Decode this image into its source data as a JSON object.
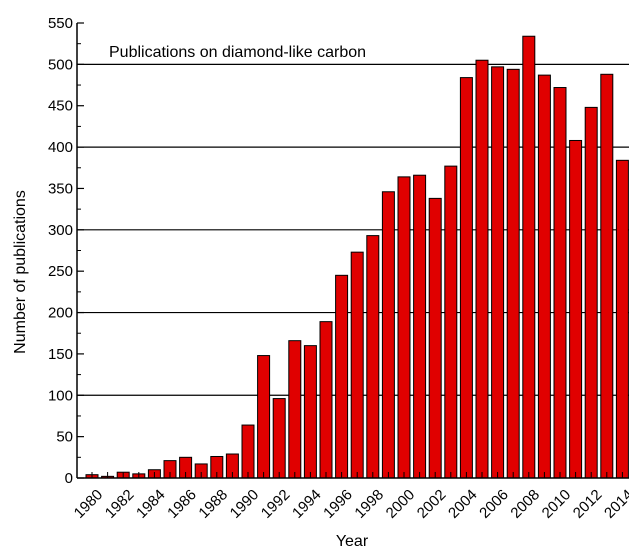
{
  "chart_data": {
    "type": "bar",
    "annotation": "Publications on diamond-like carbon",
    "xlabel": "Year",
    "ylabel": "Number of publications",
    "ylim": [
      0,
      550
    ],
    "yticks": [
      0,
      50,
      100,
      150,
      200,
      250,
      300,
      350,
      400,
      450,
      500,
      550
    ],
    "grid": "horizontal lines at 100, 200, 300, 400, 500",
    "grid_lines": [
      100,
      200,
      300,
      400,
      500
    ],
    "bar_color": "#e00000",
    "categories": [
      "1980",
      "1981",
      "1982",
      "1983",
      "1984",
      "1985",
      "1986",
      "1987",
      "1988",
      "1989",
      "1990",
      "1991",
      "1992",
      "1993",
      "1994",
      "1995",
      "1996",
      "1997",
      "1998",
      "1999",
      "2000",
      "2001",
      "2002",
      "2003",
      "2004",
      "2005",
      "2006",
      "2007",
      "2008",
      "2009",
      "2010",
      "2011",
      "2012",
      "2013",
      "2014"
    ],
    "xtick_labels": [
      "1980",
      "1982",
      "1984",
      "1986",
      "1988",
      "1990",
      "1992",
      "1994",
      "1996",
      "1998",
      "2000",
      "2002",
      "2004",
      "2006",
      "2008",
      "2010",
      "2012",
      "2014"
    ],
    "values": [
      4,
      2,
      7,
      5,
      10,
      21,
      25,
      17,
      26,
      29,
      64,
      148,
      96,
      166,
      160,
      189,
      245,
      273,
      293,
      346,
      364,
      366,
      338,
      377,
      484,
      505,
      497,
      494,
      534,
      487,
      472,
      408,
      448,
      488,
      384
    ]
  }
}
